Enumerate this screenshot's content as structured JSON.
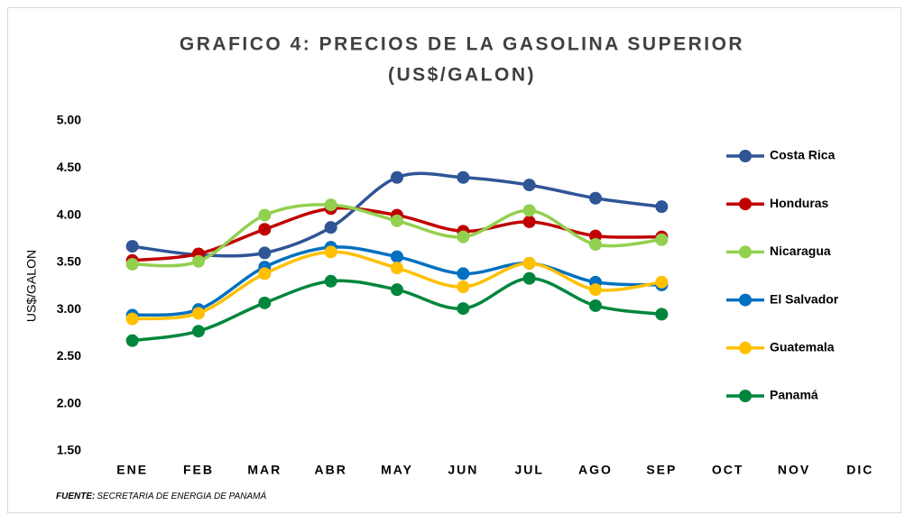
{
  "chart_data": {
    "type": "line",
    "title": [
      "GRAFICO 4: PRECIOS DE LA GASOLINA SUPERIOR",
      "(US$/GALON)"
    ],
    "y_label": "US$/GALON",
    "source_label": "FUENTE:",
    "source": "SECRETARIA DE ENERGIA DE PANAMÁ",
    "categories": [
      "ENE",
      "FEB",
      "MAR",
      "ABR",
      "MAY",
      "JUN",
      "JUL",
      "AGO",
      "SEP",
      "OCT",
      "NOV",
      "DIC"
    ],
    "series": [
      {
        "name": "Costa Rica",
        "color": "#2f5597",
        "values": [
          3.67,
          3.58,
          3.6,
          3.87,
          4.4,
          4.4,
          4.32,
          4.18,
          4.09,
          null,
          null,
          null
        ]
      },
      {
        "name": "Honduras",
        "color": "#c00000",
        "values": [
          3.52,
          3.59,
          3.85,
          4.07,
          4.0,
          3.83,
          3.93,
          3.78,
          3.77,
          null,
          null,
          null
        ]
      },
      {
        "name": "Nicaragua",
        "color": "#92d050",
        "values": [
          3.48,
          3.51,
          4.0,
          4.11,
          3.94,
          3.77,
          4.05,
          3.69,
          3.74,
          null,
          null,
          null
        ]
      },
      {
        "name": "El Salvador",
        "color": "#0070c0",
        "values": [
          2.94,
          3.0,
          3.45,
          3.66,
          3.56,
          3.38,
          3.49,
          3.29,
          3.26,
          null,
          null,
          null
        ]
      },
      {
        "name": "Guatemala",
        "color": "#ffc000",
        "values": [
          2.9,
          2.96,
          3.38,
          3.61,
          3.44,
          3.24,
          3.49,
          3.21,
          3.29,
          null,
          null,
          null
        ]
      },
      {
        "name": "Panamá",
        "color": "#00863c",
        "values": [
          2.67,
          2.77,
          3.07,
          3.3,
          3.21,
          3.01,
          3.33,
          3.04,
          2.95,
          null,
          null,
          null
        ]
      }
    ],
    "ylim": [
      1.5,
      5
    ],
    "yticks": [
      {
        "value": 1.5,
        "label": "1.50"
      },
      {
        "value": 2,
        "label": "2.00"
      },
      {
        "value": 2.5,
        "label": "2.50"
      },
      {
        "value": 3,
        "label": "3.00"
      },
      {
        "value": 3.5,
        "label": "3.50"
      },
      {
        "value": 4,
        "label": "4.00"
      },
      {
        "value": 4.5,
        "label": "4.50"
      },
      {
        "value": 5,
        "label": "5.00"
      }
    ],
    "grid": false,
    "legend": "right",
    "smooth": true
  }
}
